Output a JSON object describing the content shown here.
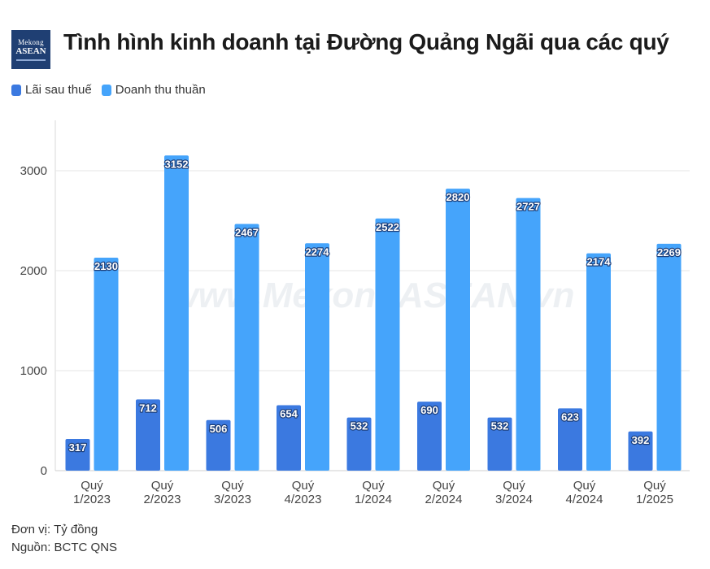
{
  "logo": {
    "line1": "Mekong",
    "line2": "ASEAN"
  },
  "title": "Tình hình kinh doanh tại Đường Quảng Ngãi qua các quý",
  "legend": [
    {
      "label": "Lãi sau thuế",
      "color": "#3b79e0"
    },
    {
      "label": "Doanh thu thuần",
      "color": "#45a4fb"
    }
  ],
  "watermark": "www.MekongASEAN.vn",
  "footer": {
    "unit": "Đơn vị: Tỷ đồng",
    "source": "Nguồn: BCTC QNS"
  },
  "chart_data": {
    "type": "bar",
    "categories": [
      [
        "Quý",
        "1/2023"
      ],
      [
        "Quý",
        "2/2023"
      ],
      [
        "Quý",
        "3/2023"
      ],
      [
        "Quý",
        "4/2023"
      ],
      [
        "Quý",
        "1/2024"
      ],
      [
        "Quý",
        "2/2024"
      ],
      [
        "Quý",
        "3/2024"
      ],
      [
        "Quý",
        "4/2024"
      ],
      [
        "Quý",
        "1/2025"
      ]
    ],
    "series": [
      {
        "name": "Lãi sau thuế",
        "color": "#3b79e0",
        "values": [
          317,
          712,
          506,
          654,
          532,
          690,
          532,
          623,
          392
        ]
      },
      {
        "name": "Doanh thu thuần",
        "color": "#45a4fb",
        "values": [
          2130,
          3152,
          2467,
          2274,
          2522,
          2820,
          2727,
          2174,
          2269
        ]
      }
    ],
    "yticks": [
      0,
      1000,
      2000,
      3000
    ],
    "ylim": [
      0,
      3500
    ],
    "grid": true,
    "data_labels": true,
    "legend_position": "top-left"
  }
}
